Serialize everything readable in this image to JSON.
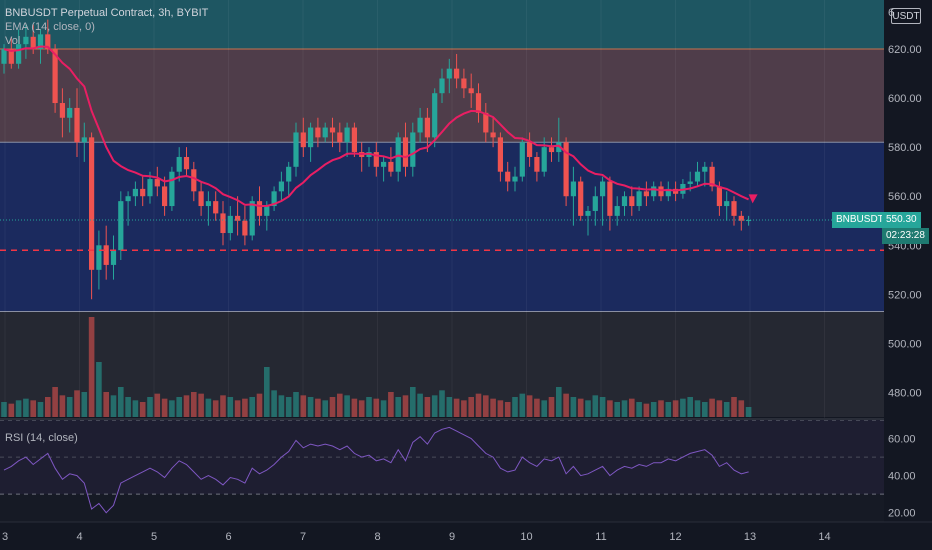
{
  "legend": {
    "symbol": "BNBUSDT Perpetual Contract, 3h, BYBIT",
    "ema": "EMA (14, close, 0)",
    "vol": "Vol",
    "rsi": "RSI (14, close)"
  },
  "currency_label": "USDT",
  "price_tag": {
    "symbol": "BNBUSDT",
    "price": "550.30",
    "countdown": "02:23:28"
  },
  "colors": {
    "up": "#26a69a",
    "down": "#ef5350",
    "ema": "#e91e63",
    "rsi": "#7e57c2",
    "support": "#f23645"
  },
  "chart_data": {
    "type": "candlestick",
    "price_axis": {
      "min": 470,
      "max": 640,
      "ticks": [
        "480.00",
        "500.00",
        "520.00",
        "540.00",
        "560.00",
        "580.00",
        "600.00",
        "620.00"
      ],
      "top_clipped_label": "6"
    },
    "x_ticks": [
      "3",
      "4",
      "5",
      "6",
      "7",
      "8",
      "9",
      "10",
      "11",
      "12",
      "13",
      "14"
    ],
    "zones": [
      {
        "from": 620,
        "to": 645,
        "color": "#1e5662"
      },
      {
        "from": 582,
        "to": 620,
        "color": "#4f3d4a"
      },
      {
        "from": 513,
        "to": 582,
        "color": "#1b2a5e"
      },
      {
        "from": 470,
        "to": 513,
        "color": "#252832"
      }
    ],
    "support_line": 538,
    "last_price": 550.3,
    "candles": [
      {
        "o": 614,
        "h": 622,
        "l": 610,
        "c": 620
      },
      {
        "o": 620,
        "h": 625,
        "l": 612,
        "c": 614
      },
      {
        "o": 614,
        "h": 628,
        "l": 612,
        "c": 622
      },
      {
        "o": 622,
        "h": 630,
        "l": 616,
        "c": 625
      },
      {
        "o": 625,
        "h": 630,
        "l": 618,
        "c": 620
      },
      {
        "o": 620,
        "h": 628,
        "l": 614,
        "c": 626
      },
      {
        "o": 626,
        "h": 632,
        "l": 618,
        "c": 620
      },
      {
        "o": 620,
        "h": 622,
        "l": 594,
        "c": 598
      },
      {
        "o": 598,
        "h": 604,
        "l": 584,
        "c": 592
      },
      {
        "o": 592,
        "h": 600,
        "l": 586,
        "c": 596
      },
      {
        "o": 596,
        "h": 604,
        "l": 576,
        "c": 582
      },
      {
        "o": 582,
        "h": 590,
        "l": 574,
        "c": 584
      },
      {
        "o": 584,
        "h": 586,
        "l": 518,
        "c": 530
      },
      {
        "o": 530,
        "h": 546,
        "l": 522,
        "c": 540
      },
      {
        "o": 540,
        "h": 548,
        "l": 526,
        "c": 532
      },
      {
        "o": 532,
        "h": 544,
        "l": 526,
        "c": 538
      },
      {
        "o": 538,
        "h": 562,
        "l": 534,
        "c": 558
      },
      {
        "o": 558,
        "h": 562,
        "l": 548,
        "c": 560
      },
      {
        "o": 560,
        "h": 566,
        "l": 556,
        "c": 563
      },
      {
        "o": 563,
        "h": 568,
        "l": 556,
        "c": 560
      },
      {
        "o": 560,
        "h": 570,
        "l": 557,
        "c": 567
      },
      {
        "o": 567,
        "h": 572,
        "l": 560,
        "c": 564
      },
      {
        "o": 564,
        "h": 568,
        "l": 552,
        "c": 556
      },
      {
        "o": 556,
        "h": 572,
        "l": 554,
        "c": 570
      },
      {
        "o": 570,
        "h": 580,
        "l": 566,
        "c": 576
      },
      {
        "o": 576,
        "h": 580,
        "l": 568,
        "c": 571
      },
      {
        "o": 571,
        "h": 574,
        "l": 558,
        "c": 562
      },
      {
        "o": 562,
        "h": 566,
        "l": 552,
        "c": 556
      },
      {
        "o": 556,
        "h": 562,
        "l": 548,
        "c": 558
      },
      {
        "o": 558,
        "h": 562,
        "l": 550,
        "c": 553
      },
      {
        "o": 553,
        "h": 558,
        "l": 540,
        "c": 545
      },
      {
        "o": 545,
        "h": 556,
        "l": 542,
        "c": 552
      },
      {
        "o": 552,
        "h": 560,
        "l": 544,
        "c": 550
      },
      {
        "o": 550,
        "h": 556,
        "l": 540,
        "c": 544
      },
      {
        "o": 544,
        "h": 560,
        "l": 542,
        "c": 558
      },
      {
        "o": 558,
        "h": 564,
        "l": 548,
        "c": 552
      },
      {
        "o": 552,
        "h": 558,
        "l": 546,
        "c": 556
      },
      {
        "o": 556,
        "h": 564,
        "l": 554,
        "c": 562
      },
      {
        "o": 562,
        "h": 570,
        "l": 558,
        "c": 566
      },
      {
        "o": 566,
        "h": 574,
        "l": 560,
        "c": 572
      },
      {
        "o": 572,
        "h": 590,
        "l": 568,
        "c": 586
      },
      {
        "o": 586,
        "h": 592,
        "l": 576,
        "c": 580
      },
      {
        "o": 580,
        "h": 590,
        "l": 574,
        "c": 588
      },
      {
        "o": 588,
        "h": 592,
        "l": 580,
        "c": 584
      },
      {
        "o": 584,
        "h": 590,
        "l": 582,
        "c": 588
      },
      {
        "o": 588,
        "h": 592,
        "l": 580,
        "c": 586
      },
      {
        "o": 586,
        "h": 590,
        "l": 578,
        "c": 582
      },
      {
        "o": 582,
        "h": 590,
        "l": 576,
        "c": 588
      },
      {
        "o": 588,
        "h": 590,
        "l": 576,
        "c": 578
      },
      {
        "o": 578,
        "h": 582,
        "l": 570,
        "c": 576
      },
      {
        "o": 576,
        "h": 580,
        "l": 572,
        "c": 578
      },
      {
        "o": 578,
        "h": 582,
        "l": 568,
        "c": 572
      },
      {
        "o": 572,
        "h": 576,
        "l": 566,
        "c": 574
      },
      {
        "o": 574,
        "h": 580,
        "l": 568,
        "c": 570
      },
      {
        "o": 570,
        "h": 586,
        "l": 566,
        "c": 584
      },
      {
        "o": 584,
        "h": 590,
        "l": 568,
        "c": 572
      },
      {
        "o": 572,
        "h": 590,
        "l": 568,
        "c": 586
      },
      {
        "o": 586,
        "h": 596,
        "l": 582,
        "c": 592
      },
      {
        "o": 592,
        "h": 596,
        "l": 578,
        "c": 584
      },
      {
        "o": 584,
        "h": 604,
        "l": 580,
        "c": 602
      },
      {
        "o": 602,
        "h": 612,
        "l": 598,
        "c": 608
      },
      {
        "o": 608,
        "h": 616,
        "l": 602,
        "c": 612
      },
      {
        "o": 612,
        "h": 618,
        "l": 604,
        "c": 608
      },
      {
        "o": 608,
        "h": 612,
        "l": 600,
        "c": 604
      },
      {
        "o": 604,
        "h": 610,
        "l": 596,
        "c": 602
      },
      {
        "o": 602,
        "h": 606,
        "l": 590,
        "c": 594
      },
      {
        "o": 594,
        "h": 598,
        "l": 582,
        "c": 586
      },
      {
        "o": 586,
        "h": 592,
        "l": 580,
        "c": 584
      },
      {
        "o": 584,
        "h": 586,
        "l": 566,
        "c": 570
      },
      {
        "o": 570,
        "h": 574,
        "l": 562,
        "c": 566
      },
      {
        "o": 566,
        "h": 572,
        "l": 562,
        "c": 568
      },
      {
        "o": 568,
        "h": 584,
        "l": 566,
        "c": 582
      },
      {
        "o": 582,
        "h": 586,
        "l": 572,
        "c": 576
      },
      {
        "o": 576,
        "h": 578,
        "l": 566,
        "c": 570
      },
      {
        "o": 570,
        "h": 584,
        "l": 568,
        "c": 580
      },
      {
        "o": 580,
        "h": 584,
        "l": 574,
        "c": 578
      },
      {
        "o": 578,
        "h": 592,
        "l": 574,
        "c": 582
      },
      {
        "o": 582,
        "h": 584,
        "l": 556,
        "c": 560
      },
      {
        "o": 560,
        "h": 572,
        "l": 548,
        "c": 566
      },
      {
        "o": 566,
        "h": 568,
        "l": 550,
        "c": 552
      },
      {
        "o": 552,
        "h": 556,
        "l": 544,
        "c": 554
      },
      {
        "o": 554,
        "h": 564,
        "l": 548,
        "c": 560
      },
      {
        "o": 560,
        "h": 568,
        "l": 548,
        "c": 566
      },
      {
        "o": 566,
        "h": 568,
        "l": 546,
        "c": 552
      },
      {
        "o": 552,
        "h": 560,
        "l": 548,
        "c": 556
      },
      {
        "o": 556,
        "h": 562,
        "l": 552,
        "c": 560
      },
      {
        "o": 560,
        "h": 564,
        "l": 552,
        "c": 556
      },
      {
        "o": 556,
        "h": 564,
        "l": 554,
        "c": 562
      },
      {
        "o": 562,
        "h": 566,
        "l": 556,
        "c": 560
      },
      {
        "o": 560,
        "h": 566,
        "l": 558,
        "c": 564
      },
      {
        "o": 564,
        "h": 566,
        "l": 558,
        "c": 560
      },
      {
        "o": 560,
        "h": 566,
        "l": 558,
        "c": 563
      },
      {
        "o": 563,
        "h": 566,
        "l": 558,
        "c": 561
      },
      {
        "o": 561,
        "h": 567,
        "l": 559,
        "c": 565
      },
      {
        "o": 565,
        "h": 570,
        "l": 562,
        "c": 566
      },
      {
        "o": 566,
        "h": 574,
        "l": 564,
        "c": 570
      },
      {
        "o": 570,
        "h": 574,
        "l": 564,
        "c": 572
      },
      {
        "o": 572,
        "h": 574,
        "l": 562,
        "c": 564
      },
      {
        "o": 564,
        "h": 566,
        "l": 552,
        "c": 556
      },
      {
        "o": 556,
        "h": 562,
        "l": 550,
        "c": 558
      },
      {
        "o": 558,
        "h": 560,
        "l": 548,
        "c": 552
      },
      {
        "o": 552,
        "h": 554,
        "l": 546,
        "c": 550
      },
      {
        "o": 550,
        "h": 552,
        "l": 548,
        "c": 550.3
      }
    ],
    "volume": [
      9,
      8,
      10,
      11,
      10,
      9,
      12,
      18,
      13,
      12,
      16,
      15,
      60,
      33,
      15,
      13,
      18,
      12,
      10,
      9,
      12,
      14,
      11,
      10,
      12,
      13,
      15,
      14,
      11,
      10,
      13,
      12,
      10,
      11,
      12,
      14,
      30,
      16,
      13,
      12,
      15,
      13,
      12,
      11,
      10,
      12,
      14,
      13,
      11,
      10,
      12,
      11,
      10,
      15,
      12,
      13,
      18,
      14,
      12,
      13,
      16,
      12,
      11,
      10,
      12,
      14,
      13,
      11,
      10,
      9,
      12,
      14,
      13,
      11,
      10,
      12,
      18,
      14,
      12,
      11,
      10,
      13,
      12,
      10,
      9,
      10,
      11,
      9,
      8,
      9,
      10,
      9,
      10,
      11,
      12,
      10,
      9,
      11,
      10,
      9,
      12,
      10,
      6
    ],
    "rsi_axis": {
      "min": 15,
      "max": 70,
      "ticks": [
        "20.00",
        "40.00",
        "60.00"
      ],
      "band": [
        30,
        70
      ],
      "midline": 50
    },
    "rsi": [
      43,
      45,
      48,
      50,
      46,
      49,
      52,
      44,
      38,
      41,
      40,
      36,
      22,
      25,
      20,
      24,
      36,
      38,
      40,
      42,
      44,
      42,
      39,
      44,
      48,
      46,
      42,
      38,
      40,
      38,
      35,
      39,
      38,
      36,
      44,
      41,
      43,
      46,
      50,
      53,
      59,
      55,
      57,
      56,
      57,
      56,
      54,
      56,
      52,
      50,
      51,
      48,
      49,
      47,
      54,
      48,
      58,
      61,
      57,
      63,
      65,
      66,
      64,
      62,
      60,
      56,
      52,
      50,
      44,
      42,
      43,
      50,
      47,
      45,
      49,
      48,
      50,
      41,
      45,
      40,
      41,
      43,
      45,
      40,
      43,
      45,
      44,
      46,
      45,
      47,
      47,
      49,
      48,
      50,
      52,
      53,
      54,
      51,
      45,
      47,
      43,
      41,
      42
    ]
  }
}
